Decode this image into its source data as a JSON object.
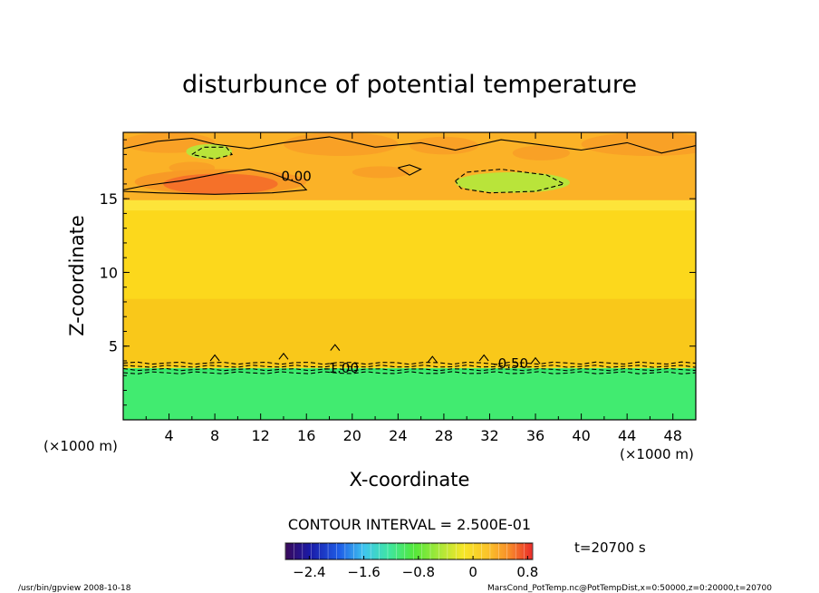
{
  "chart_data": {
    "type": "heatmap",
    "title": "disturbunce of potential temperature",
    "xlabel": "X-coordinate",
    "ylabel": "Z-coordinate",
    "x_unit_left": "(×1000 m)",
    "x_unit_right": "(×1000 m)",
    "xlim": [
      0,
      50
    ],
    "ylim": [
      0,
      19.5
    ],
    "xticks": [
      4,
      8,
      12,
      16,
      20,
      24,
      28,
      32,
      36,
      40,
      44,
      48
    ],
    "yticks": [
      5,
      10,
      15
    ],
    "contour_interval_text": "CONTOUR INTERVAL = 2.500E-01",
    "time_label": "t=20700 s",
    "contour_labels": [
      {
        "text": "0.00",
        "x": 13.8,
        "z": 16.2
      },
      {
        "text": "-1.00",
        "x": 17.5,
        "z": 3.2
      },
      {
        "text": "-0.50",
        "x": 32.3,
        "z": 3.5
      }
    ],
    "colorbar": {
      "range": [
        -2.75,
        0.875
      ],
      "ticks": [
        "-2.4",
        "-1.6",
        "-0.8",
        "0",
        "0.8"
      ],
      "tick_values": [
        -2.4,
        -1.6,
        -0.8,
        0,
        0.8
      ]
    },
    "regions": [
      {
        "name": "lower-layer",
        "z": [
          0,
          3.5
        ],
        "value": -1.2
      },
      {
        "name": "middle-layer",
        "z": [
          3.5,
          14.8
        ],
        "value": -0.05
      },
      {
        "name": "upper-layer",
        "z": [
          14.8,
          19.5
        ],
        "value": 0.2
      },
      {
        "name": "warm-anomaly",
        "x": [
          1,
          16
        ],
        "z": [
          15.3,
          17.0
        ],
        "value": 0.45
      },
      {
        "name": "cool-anomaly",
        "x": [
          29,
          39
        ],
        "z": [
          15.4,
          16.8
        ],
        "value": -0.4
      }
    ]
  },
  "footer": {
    "left": "/usr/bin/gpview   2008-10-18",
    "right": "MarsCond_PotTemp.nc@PotTempDist,x=0:50000,z=0:20000,t=20700"
  },
  "colors": {
    "lower": "#33e86a",
    "lower_light": "#5cf07a",
    "middle": "#fcd81c",
    "middle_dark": "#f9c81a",
    "upper": "#fbb227",
    "upper_strong": "#f89a26",
    "warm": "#f56a2a",
    "cool": "#b9e43a"
  }
}
